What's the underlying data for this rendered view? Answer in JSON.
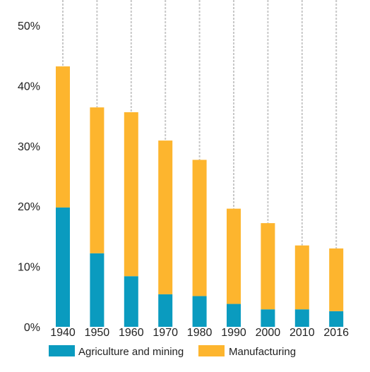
{
  "chart_data": {
    "type": "bar",
    "stacked": true,
    "title": "",
    "xlabel": "",
    "ylabel": "",
    "categories": [
      "1940",
      "1950",
      "1960",
      "1970",
      "1980",
      "1990",
      "2000",
      "2010",
      "2016"
    ],
    "series": [
      {
        "name": "Agriculture and mining",
        "color": "#0a9bbf",
        "values": [
          19.8,
          12.2,
          8.4,
          5.4,
          5.1,
          3.8,
          2.9,
          2.9,
          2.6
        ]
      },
      {
        "name": "Manufacturing",
        "color": "#fdb52e",
        "values": [
          23.4,
          24.2,
          27.2,
          25.5,
          22.6,
          15.8,
          14.3,
          10.6,
          10.4
        ]
      }
    ],
    "ylim": [
      0,
      50
    ],
    "yticks": [
      "0%",
      "10%",
      "20%",
      "30%",
      "40%",
      "50%"
    ],
    "grid": "vertical dashed lines above bars",
    "legend_position": "bottom-left"
  }
}
